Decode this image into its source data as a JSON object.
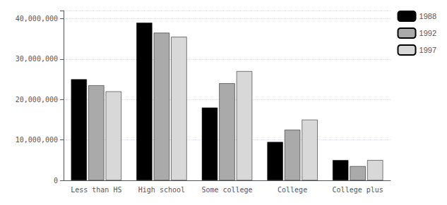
{
  "chart_data": {
    "type": "bar",
    "categories": [
      "Less than HS",
      "High school",
      "Some college",
      "College",
      "College plus"
    ],
    "series": [
      {
        "name": "1988",
        "color": "#000000",
        "values": [
          25000000,
          39000000,
          18000000,
          9500000,
          5000000
        ]
      },
      {
        "name": "1992",
        "color": "#aaaaaa",
        "values": [
          23500000,
          36500000,
          24000000,
          12500000,
          3500000
        ]
      },
      {
        "name": "1997",
        "color": "#d8d8d8",
        "values": [
          22000000,
          35500000,
          27000000,
          15000000,
          5000000
        ]
      }
    ],
    "ylim": [
      0,
      42000000
    ],
    "yticks": [
      0,
      {
        "value": 10000000,
        "label": "10,000,000"
      },
      {
        "value": 20000000,
        "label": "20,000,000"
      },
      {
        "value": 30000000,
        "label": "30,000,000"
      },
      {
        "value": 40000000,
        "label": "40,000,000"
      }
    ],
    "grid": true,
    "legend": "right"
  }
}
